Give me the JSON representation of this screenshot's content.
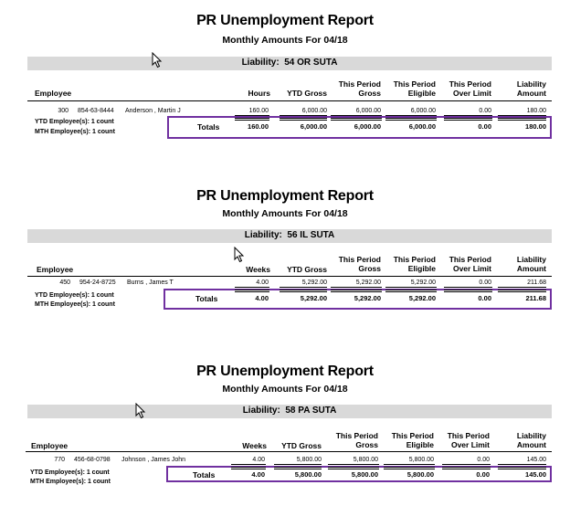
{
  "reports": [
    {
      "title": "PR Unemployment Report",
      "subtitle": "Monthly Amounts For 04/18",
      "liability_label": "Liability:",
      "liability_value": "54 OR SUTA",
      "headers": {
        "employee": "Employee",
        "qty": "Hours",
        "ytd": "YTD Gross",
        "period_gross_1": "This Period",
        "period_gross_2": "Gross",
        "period_elig_1": "This Period",
        "period_elig_2": "Eligible",
        "over_1": "This Period",
        "over_2": "Over Limit",
        "liab_1": "Liability",
        "liab_2": "Amount"
      },
      "row": {
        "id": "300",
        "ssn": "854-63-8444",
        "name": "Anderson , Martin J",
        "qty": "160.00",
        "ytd": "6,000.00",
        "gross": "6,000.00",
        "eligible": "6,000.00",
        "over": "0.00",
        "amount": "180.00"
      },
      "totals_label": "Totals",
      "totals": {
        "qty": "160.00",
        "ytd": "6,000.00",
        "gross": "6,000.00",
        "eligible": "6,000.00",
        "over": "0.00",
        "amount": "180.00"
      },
      "ytd_count": "YTD Employee(s):  1 count",
      "mth_count": "MTH Employee(s):  1 count"
    },
    {
      "title": "PR Unemployment Report",
      "subtitle": "Monthly Amounts For 04/18",
      "liability_label": "Liability:",
      "liability_value": "56 IL SUTA",
      "headers": {
        "employee": "Employee",
        "qty": "Weeks",
        "ytd": "YTD Gross",
        "period_gross_1": "This Period",
        "period_gross_2": "Gross",
        "period_elig_1": "This Period",
        "period_elig_2": "Eligible",
        "over_1": "This Period",
        "over_2": "Over Limit",
        "liab_1": "Liability",
        "liab_2": "Amount"
      },
      "row": {
        "id": "450",
        "ssn": "954-24-8725",
        "name": "Burns , James T",
        "qty": "4.00",
        "ytd": "5,292.00",
        "gross": "5,292.00",
        "eligible": "5,292.00",
        "over": "0.00",
        "amount": "211.68"
      },
      "totals_label": "Totals",
      "totals": {
        "qty": "4.00",
        "ytd": "5,292.00",
        "gross": "5,292.00",
        "eligible": "5,292.00",
        "over": "0.00",
        "amount": "211.68"
      },
      "ytd_count": "YTD Employee(s):  1 count",
      "mth_count": "MTH Employee(s):  1 count"
    },
    {
      "title": "PR Unemployment Report",
      "subtitle": "Monthly Amounts For 04/18",
      "liability_label": "Liability:",
      "liability_value": "58 PA SUTA",
      "headers": {
        "employee": "Employee",
        "qty": "Weeks",
        "ytd": "YTD Gross",
        "period_gross_1": "This Period",
        "period_gross_2": "Gross",
        "period_elig_1": "This Period",
        "period_elig_2": "Eligible",
        "over_1": "This Period",
        "over_2": "Over Limit",
        "liab_1": "Liability",
        "liab_2": "Amount"
      },
      "row": {
        "id": "770",
        "ssn": "456-68-0798",
        "name": "Johnson , James John",
        "qty": "4.00",
        "ytd": "5,800.00",
        "gross": "5,800.00",
        "eligible": "5,800.00",
        "over": "0.00",
        "amount": "145.00"
      },
      "totals_label": "Totals",
      "totals": {
        "qty": "4.00",
        "ytd": "5,800.00",
        "gross": "5,800.00",
        "eligible": "5,800.00",
        "over": "0.00",
        "amount": "145.00"
      },
      "ytd_count": "YTD Employee(s):  1 count",
      "mth_count": "MTH Employee(s):  1 count"
    }
  ],
  "colors": {
    "liability_bar": "#d9d9d9",
    "highlight_box": "#7030a0"
  },
  "icons": {
    "cursor": "mouse-pointer-icon"
  }
}
